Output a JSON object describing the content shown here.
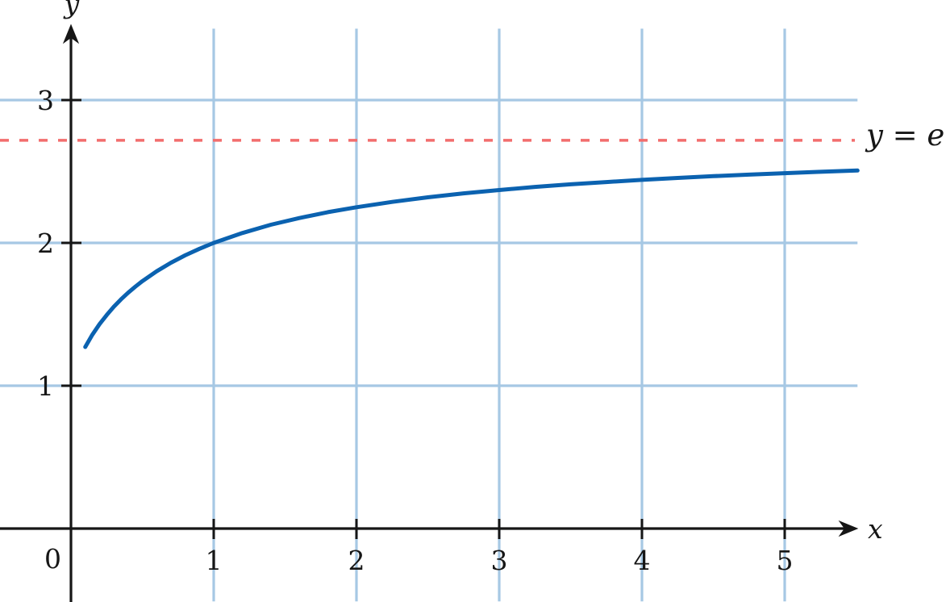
{
  "figure": {
    "x_axis_label": "x",
    "y_axis_label": "y",
    "origin_label": "0",
    "asymptote_label": "y = e"
  },
  "colors": {
    "background": "#ffffff",
    "curve": "#0b62b0",
    "grid": "#a6c8e4",
    "asymptote": "#f26d6d",
    "axis": "#161616"
  },
  "chart_data": {
    "type": "line",
    "title": "",
    "xlabel": "x",
    "ylabel": "y",
    "x_range": [
      -0.5,
      5.51
    ],
    "y_range": [
      -0.51,
      3.5
    ],
    "grid": true,
    "x_ticks": {
      "values": [
        1,
        2,
        3,
        4,
        5
      ],
      "labels": [
        "1",
        "2",
        "3",
        "4",
        "5"
      ]
    },
    "y_ticks": {
      "values": [
        1,
        2,
        3
      ],
      "labels": [
        "1",
        "2",
        "3"
      ]
    },
    "origin_label": "0",
    "asymptote": {
      "label": "y = e",
      "value": 2.71828,
      "style": "dashed"
    },
    "series": [
      {
        "name": "curve",
        "points": [
          [
            0.1,
            1.271
          ],
          [
            0.15,
            1.357
          ],
          [
            0.2,
            1.431
          ],
          [
            0.25,
            1.495
          ],
          [
            0.3,
            1.553
          ],
          [
            0.35,
            1.604
          ],
          [
            0.4,
            1.651
          ],
          [
            0.45,
            1.693
          ],
          [
            0.5,
            1.732
          ],
          [
            0.6,
            1.801
          ],
          [
            0.7,
            1.861
          ],
          [
            0.8,
            1.913
          ],
          [
            0.9,
            1.959
          ],
          [
            1.0,
            2.0
          ],
          [
            1.2,
            2.069
          ],
          [
            1.4,
            2.127
          ],
          [
            1.6,
            2.174
          ],
          [
            1.8,
            2.215
          ],
          [
            2.0,
            2.25
          ],
          [
            2.25,
            2.287
          ],
          [
            2.5,
            2.319
          ],
          [
            2.75,
            2.347
          ],
          [
            3.0,
            2.37
          ],
          [
            3.25,
            2.392
          ],
          [
            3.5,
            2.41
          ],
          [
            3.75,
            2.426
          ],
          [
            4.0,
            2.441
          ],
          [
            4.25,
            2.455
          ],
          [
            4.5,
            2.467
          ],
          [
            4.75,
            2.478
          ],
          [
            5.0,
            2.488
          ],
          [
            5.25,
            2.498
          ],
          [
            5.51,
            2.507
          ]
        ]
      }
    ]
  }
}
